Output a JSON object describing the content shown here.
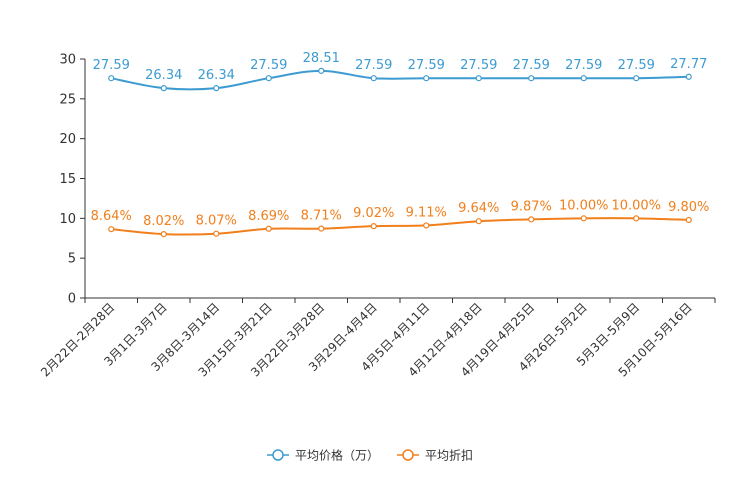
{
  "chart_data": {
    "type": "line",
    "categories": [
      "2月22日-2月28日",
      "3月1日-3月7日",
      "3月8日-3月14日",
      "3月15日-3月21日",
      "3月22日-3月28日",
      "3月29日-4月4日",
      "4月5日-4月11日",
      "4月12日-4月18日",
      "4月19日-4月25日",
      "4月26日-5月2日",
      "5月3日-5月9日",
      "5月10日-5月16日"
    ],
    "ylim": [
      0,
      30
    ],
    "yticks": [
      0,
      5,
      10,
      15,
      20,
      25,
      30
    ],
    "grid": false,
    "legend_position": "bottom-center",
    "series": [
      {
        "name": "平均价格（万）",
        "color": "#3d9bd1",
        "values": [
          27.59,
          26.34,
          26.34,
          27.59,
          28.51,
          27.59,
          27.59,
          27.59,
          27.59,
          27.59,
          27.59,
          27.77
        ],
        "labels": [
          "27.59",
          "26.34",
          "26.34",
          "27.59",
          "28.51",
          "27.59",
          "27.59",
          "27.59",
          "27.59",
          "27.59",
          "27.59",
          "27.77"
        ]
      },
      {
        "name": "平均折扣",
        "color": "#f07f1c",
        "values": [
          8.64,
          8.02,
          8.07,
          8.69,
          8.71,
          9.02,
          9.11,
          9.64,
          9.87,
          10.0,
          10.0,
          9.8
        ],
        "labels": [
          "8.64%",
          "8.02%",
          "8.07%",
          "8.69%",
          "8.71%",
          "9.02%",
          "9.11%",
          "9.64%",
          "9.87%",
          "10.00%",
          "10.00%",
          "9.80%"
        ]
      }
    ]
  }
}
